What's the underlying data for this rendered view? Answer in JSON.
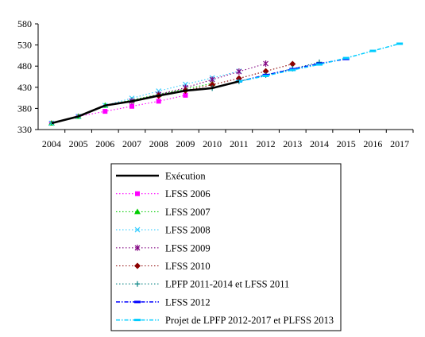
{
  "chart_data": {
    "type": "line",
    "title": "",
    "xlabel": "",
    "ylabel": "",
    "ylim": [
      330,
      580
    ],
    "yticks": [
      330,
      380,
      430,
      480,
      530,
      580
    ],
    "xticks": [
      2004,
      2005,
      2006,
      2007,
      2008,
      2009,
      2010,
      2011,
      2012,
      2013,
      2014,
      2015,
      2016,
      2017
    ],
    "grid": false,
    "legend_position": "bottom",
    "series": [
      {
        "name": "Exécution",
        "color": "#000000",
        "style": "solid",
        "marker": "none",
        "x": [
          2004,
          2005,
          2006,
          2007,
          2008,
          2009,
          2010,
          2011
        ],
        "y": [
          345,
          361,
          387,
          397,
          410,
          422,
          428,
          444
        ]
      },
      {
        "name": "LFSS 2006",
        "color": "#ff00ff",
        "style": "dotted",
        "marker": "square",
        "x": [
          2004,
          2005,
          2006,
          2007,
          2008,
          2009
        ],
        "y": [
          345,
          361,
          373,
          385,
          397,
          411
        ]
      },
      {
        "name": "LFSS 2007",
        "color": "#00cc00",
        "style": "dotted",
        "marker": "triangle",
        "x": [
          2004,
          2005,
          2006,
          2007,
          2008,
          2009,
          2010
        ],
        "y": [
          345,
          361,
          387,
          400,
          413,
          426,
          439
        ]
      },
      {
        "name": "LFSS 2008",
        "color": "#33ccff",
        "style": "dotted",
        "marker": "x",
        "x": [
          2004,
          2005,
          2006,
          2007,
          2008,
          2009,
          2010,
          2011
        ],
        "y": [
          345,
          361,
          387,
          404,
          421,
          437,
          452,
          468
        ]
      },
      {
        "name": "LFSS 2009",
        "color": "#800080",
        "style": "dotted",
        "marker": "star",
        "x": [
          2007,
          2008,
          2009,
          2010,
          2011,
          2012
        ],
        "y": [
          397,
          413,
          429,
          448,
          467,
          486
        ]
      },
      {
        "name": "LFSS 2010",
        "color": "#8b0000",
        "style": "dotted",
        "marker": "diamond",
        "x": [
          2008,
          2009,
          2010,
          2011,
          2012,
          2013
        ],
        "y": [
          410,
          422,
          436,
          451,
          468,
          485
        ]
      },
      {
        "name": "LPFP 2011-2014 et LFSS 2011",
        "color": "#008080",
        "style": "dotted",
        "marker": "plus",
        "x": [
          2010,
          2011,
          2012,
          2013,
          2014
        ],
        "y": [
          428,
          444,
          459,
          474,
          489
        ]
      },
      {
        "name": "LFSS 2012",
        "color": "#0000ff",
        "style": "dashdot",
        "marker": "dash",
        "x": [
          2011,
          2012,
          2013,
          2014,
          2015
        ],
        "y": [
          444,
          459,
          473,
          486,
          497
        ]
      },
      {
        "name": "Projet de LPFP 2012-2017 et PLFSS 2013",
        "color": "#00ccff",
        "style": "dashdot",
        "marker": "dash",
        "x": [
          2011,
          2012,
          2013,
          2014,
          2015,
          2016,
          2017
        ],
        "y": [
          444,
          457,
          471,
          484,
          499,
          516,
          533
        ]
      }
    ]
  }
}
